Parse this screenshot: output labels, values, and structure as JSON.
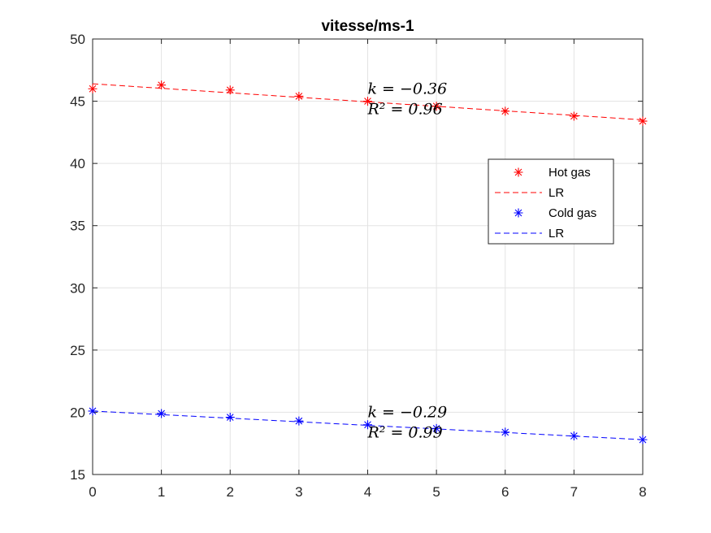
{
  "chart_data": {
    "type": "scatter",
    "title": "vitesse/ms-1",
    "xlabel": "",
    "ylabel": "",
    "xlim": [
      0,
      8
    ],
    "ylim": [
      15,
      50
    ],
    "xticks": [
      0,
      1,
      2,
      3,
      4,
      5,
      6,
      7,
      8
    ],
    "yticks": [
      15,
      20,
      25,
      30,
      35,
      40,
      45,
      50
    ],
    "grid": true,
    "legend_position": "right",
    "series": [
      {
        "name": "Hot gas",
        "kind": "points",
        "marker": "asterisk",
        "color": "#ff0000",
        "x": [
          0,
          1,
          2,
          3,
          4,
          5,
          6,
          7,
          8
        ],
        "y": [
          46.0,
          46.3,
          45.9,
          45.4,
          45.0,
          44.6,
          44.2,
          43.8,
          43.4
        ]
      },
      {
        "name": "LR",
        "kind": "line",
        "style": "dashed",
        "color": "#ff0000",
        "x": [
          0,
          8
        ],
        "y": [
          46.4,
          43.5
        ]
      },
      {
        "name": "Cold gas",
        "kind": "points",
        "marker": "asterisk",
        "color": "#0000ff",
        "x": [
          0,
          1,
          2,
          3,
          4,
          5,
          6,
          7,
          8
        ],
        "y": [
          20.1,
          19.9,
          19.6,
          19.3,
          19.0,
          18.7,
          18.4,
          18.1,
          17.8
        ]
      },
      {
        "name": "LR",
        "kind": "line",
        "style": "dashed",
        "color": "#0000ff",
        "x": [
          0,
          8
        ],
        "y": [
          20.1,
          17.8
        ]
      }
    ],
    "annotations": [
      {
        "k_text": "k = −0.36",
        "r2_text": "R² = 0.96",
        "x": 4,
        "y": 45.0
      },
      {
        "k_text": "k = −0.29",
        "r2_text": "R² = 0.99",
        "x": 4,
        "y": 19.0
      }
    ]
  }
}
